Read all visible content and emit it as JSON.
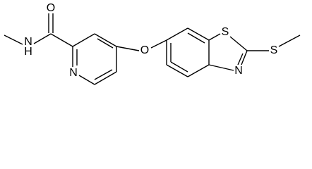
{
  "atom_labels": [
    "O",
    "N",
    "H",
    "N",
    "O",
    "S",
    "N",
    "S"
  ]
}
